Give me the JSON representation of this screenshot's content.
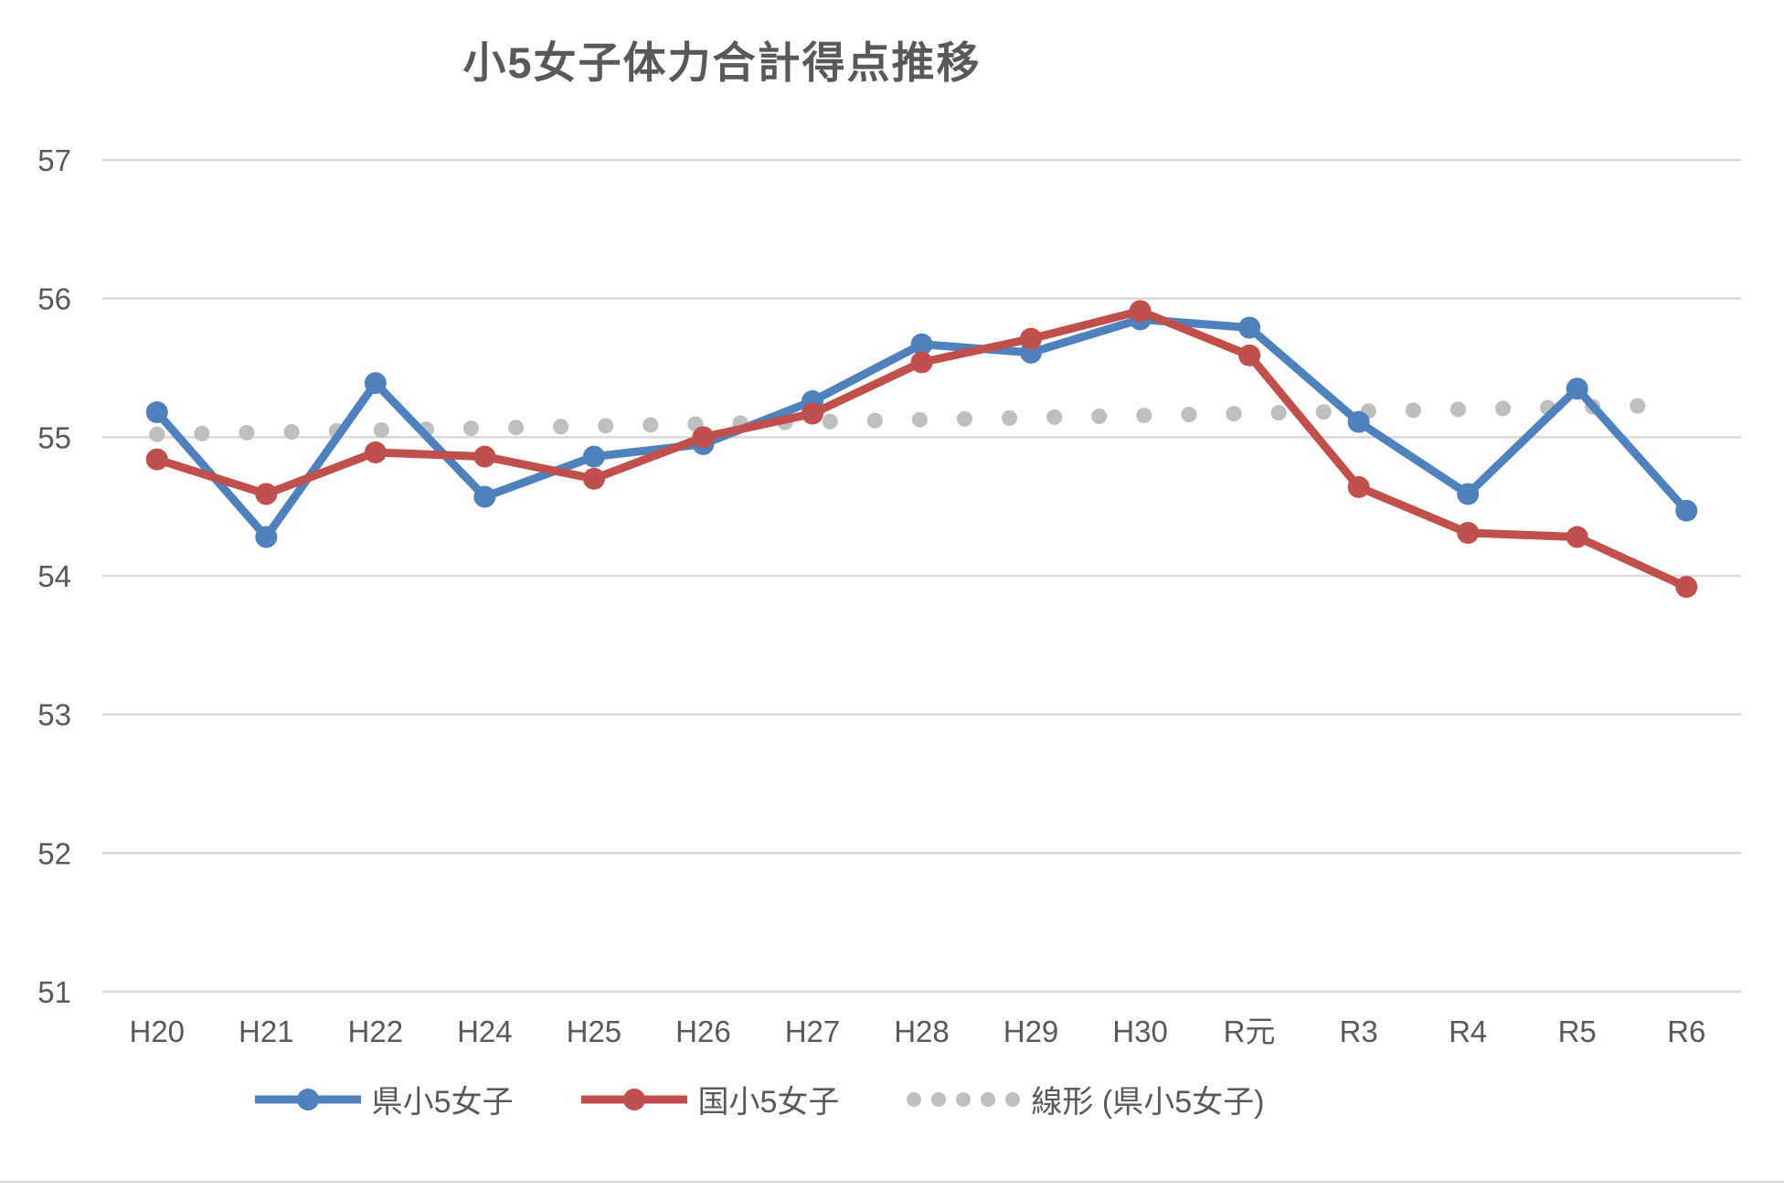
{
  "chart_data": {
    "type": "line",
    "title": "小5女子体力合計得点推移",
    "categories": [
      "H20",
      "H21",
      "H22",
      "H24",
      "H25",
      "H26",
      "H27",
      "H28",
      "H29",
      "H30",
      "R元",
      "R3",
      "R4",
      "R5",
      "R6"
    ],
    "series": [
      {
        "name": "県小5女子",
        "color": "#4F81BD",
        "values": [
          55.18,
          54.28,
          55.39,
          54.57,
          54.86,
          54.95,
          55.26,
          55.67,
          55.61,
          55.85,
          55.79,
          55.11,
          54.59,
          55.35,
          54.47
        ]
      },
      {
        "name": "国小5女子",
        "color": "#C0504D",
        "values": [
          54.84,
          54.59,
          54.89,
          54.86,
          54.7,
          55.0,
          55.17,
          55.54,
          55.71,
          55.91,
          55.59,
          54.64,
          54.31,
          54.28,
          53.92
        ]
      }
    ],
    "trendline": {
      "name": "線形 (県小5女子)",
      "color": "#BFBFBF",
      "start_value": 55.02,
      "end_value": 55.23
    },
    "ylim": [
      51,
      57
    ],
    "yticks": [
      51,
      52,
      53,
      54,
      55,
      56,
      57
    ],
    "grid": true,
    "gridline_color": "#d9d9d9",
    "axis_text_color": "#595959",
    "legend_position": "bottom"
  }
}
